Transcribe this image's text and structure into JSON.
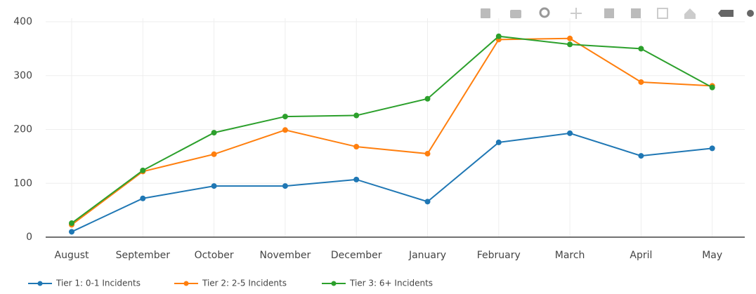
{
  "chart_data": {
    "type": "line",
    "categories": [
      "August",
      "September",
      "October",
      "November",
      "December",
      "January",
      "February",
      "March",
      "April",
      "May"
    ],
    "series": [
      {
        "name": "Tier 1: 0-1 Incidents",
        "color": "#1f77b4",
        "values": [
          10,
          72,
          95,
          95,
          107,
          66,
          176,
          193,
          151,
          165
        ]
      },
      {
        "name": "Tier 2: 2-5 Incidents",
        "color": "#ff7f0e",
        "values": [
          23,
          122,
          154,
          199,
          168,
          155,
          367,
          369,
          288,
          281
        ]
      },
      {
        "name": "Tier 3: 6+ Incidents",
        "color": "#2ca02c",
        "values": [
          26,
          124,
          194,
          224,
          226,
          257,
          373,
          358,
          350,
          278
        ]
      }
    ],
    "ylim": [
      0,
      400
    ],
    "yticks": [
      0,
      100,
      200,
      300,
      400
    ],
    "grid": true
  }
}
